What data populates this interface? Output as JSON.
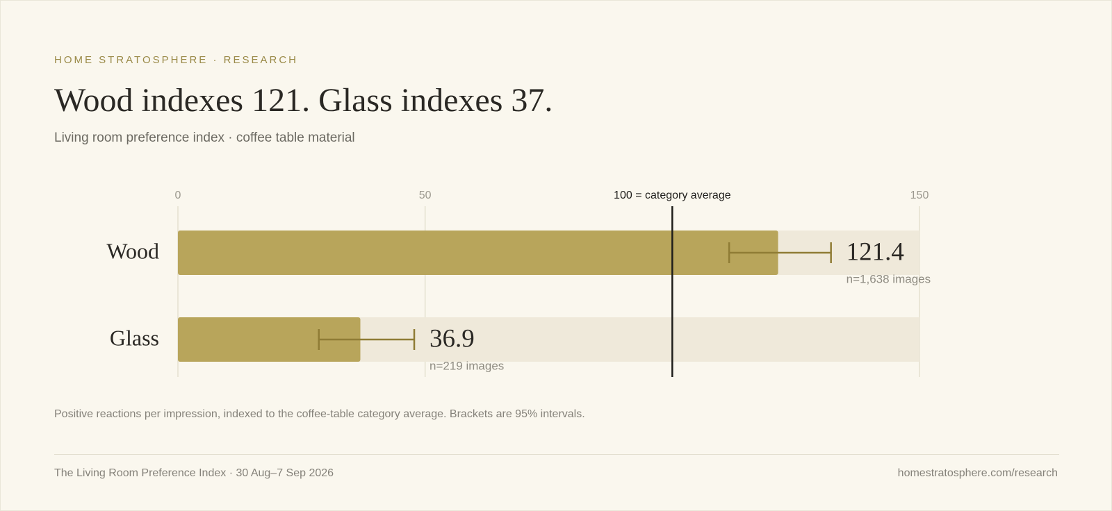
{
  "header": {
    "eyebrow": "HOME STRATOSPHERE · RESEARCH",
    "headline": "Wood indexes 121. Glass indexes 37.",
    "subtitle": "Living room preference index · coffee table material"
  },
  "chart_data": {
    "type": "bar",
    "orientation": "horizontal",
    "xlim": [
      0,
      150
    ],
    "ticks": [
      0,
      50,
      150
    ],
    "reference": {
      "value": 100,
      "label": "100 = category average"
    },
    "grid": true,
    "categories": [
      "Wood",
      "Glass"
    ],
    "values": [
      121.4,
      36.9
    ],
    "value_labels": [
      "121.4",
      "36.9"
    ],
    "intervals": [
      [
        111.5,
        132.1
      ],
      [
        28.5,
        47.8
      ]
    ],
    "sample_labels": [
      "n=1,638 images",
      "n=219 images"
    ],
    "colors": {
      "bar": "#b8a55b",
      "track": "#efe9da",
      "interval": "#8f7c35",
      "reference": "#1e1d1a",
      "grid": "#e4e0cf"
    }
  },
  "note": "Positive reactions per impression, indexed to the coffee-table category average. Brackets are 95% intervals.",
  "footer": {
    "left": "The Living Room Preference Index · 30 Aug–7 Sep 2026",
    "right": "homestratosphere.com/research"
  }
}
